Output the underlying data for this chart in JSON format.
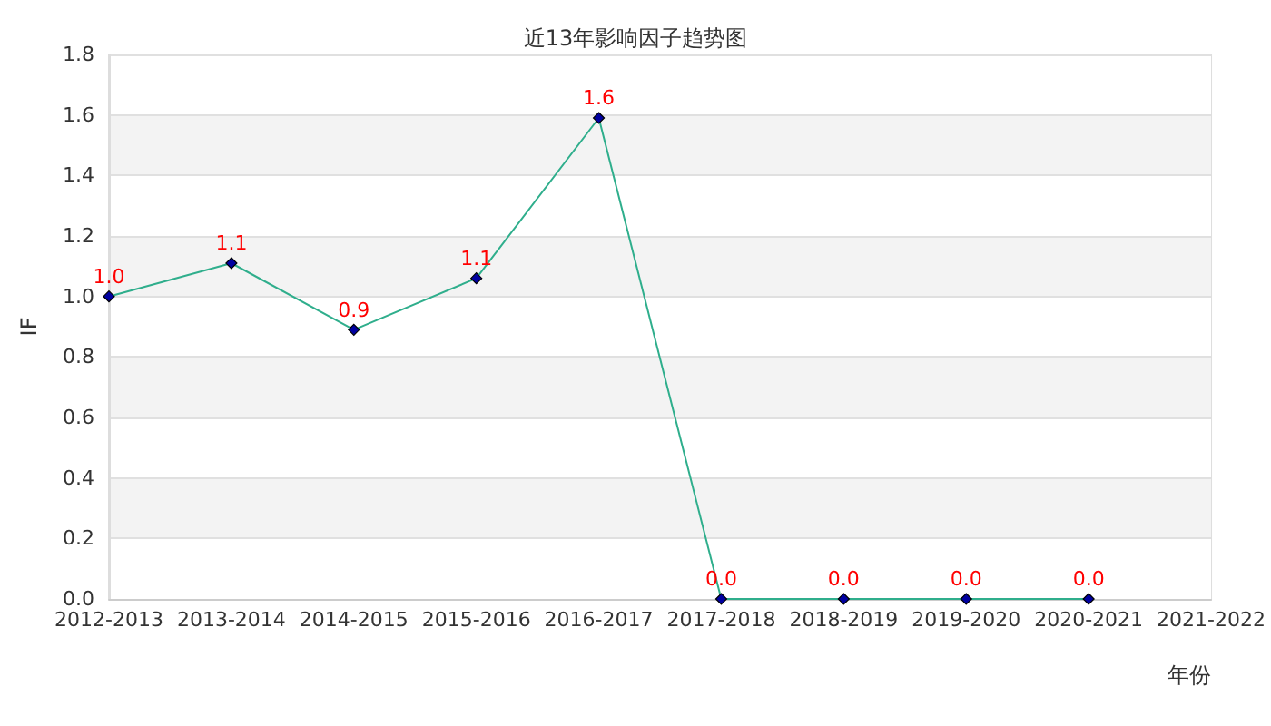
{
  "chart_data": {
    "type": "line",
    "title": "近13年影响因子趋势图",
    "xlabel": "年份",
    "ylabel": "IF",
    "categories": [
      "2012-2013",
      "2013-2014",
      "2014-2015",
      "2015-2016",
      "2016-2017",
      "2017-2018",
      "2018-2019",
      "2019-2020",
      "2020-2021",
      "2021-2022"
    ],
    "values": [
      1.0,
      1.11,
      0.89,
      1.06,
      1.59,
      0,
      0,
      0,
      0,
      null
    ],
    "value_labels": [
      "1.0",
      "1.1",
      "0.9",
      "1.1",
      "1.6",
      "0.0",
      "0.0",
      "0.0",
      "0.0",
      null
    ],
    "color": "#2fae8c",
    "marker": "diamond",
    "ylim": [
      0,
      1.8
    ],
    "yticks": [
      {
        "value": 0,
        "label": "0.0"
      },
      0.2,
      0.4,
      0.6,
      0.8,
      {
        "value": 1,
        "label": "1.0"
      },
      1.2,
      1.4,
      1.6,
      1.8
    ],
    "grid": "y"
  }
}
